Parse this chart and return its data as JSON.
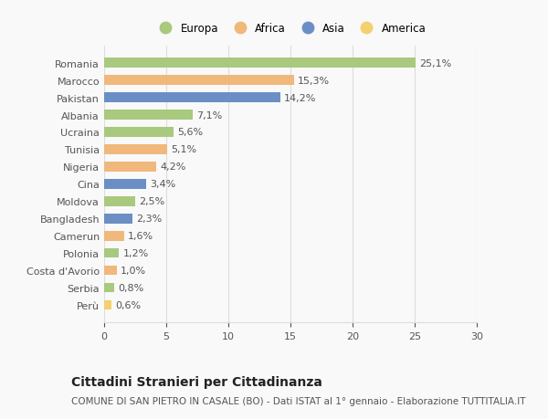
{
  "countries": [
    "Romania",
    "Marocco",
    "Pakistan",
    "Albania",
    "Ucraina",
    "Tunisia",
    "Nigeria",
    "Cina",
    "Moldova",
    "Bangladesh",
    "Camerun",
    "Polonia",
    "Costa d'Avorio",
    "Serbia",
    "Perù"
  ],
  "values": [
    25.1,
    15.3,
    14.2,
    7.1,
    5.6,
    5.1,
    4.2,
    3.4,
    2.5,
    2.3,
    1.6,
    1.2,
    1.0,
    0.8,
    0.6
  ],
  "labels": [
    "25,1%",
    "15,3%",
    "14,2%",
    "7,1%",
    "5,6%",
    "5,1%",
    "4,2%",
    "3,4%",
    "2,5%",
    "2,3%",
    "1,6%",
    "1,2%",
    "1,0%",
    "0,8%",
    "0,6%"
  ],
  "continents": [
    "Europa",
    "Africa",
    "Asia",
    "Europa",
    "Europa",
    "Africa",
    "Africa",
    "Asia",
    "Europa",
    "Asia",
    "Africa",
    "Europa",
    "Africa",
    "Europa",
    "America"
  ],
  "continent_colors": {
    "Europa": "#a8c97e",
    "Africa": "#f0b87a",
    "Asia": "#6b8fc4",
    "America": "#f5d070"
  },
  "legend_order": [
    "Europa",
    "Africa",
    "Asia",
    "America"
  ],
  "title": "Cittadini Stranieri per Cittadinanza",
  "subtitle": "COMUNE DI SAN PIETRO IN CASALE (BO) - Dati ISTAT al 1° gennaio - Elaborazione TUTTITALIA.IT",
  "xlim": [
    0,
    30
  ],
  "xticks": [
    0,
    5,
    10,
    15,
    20,
    25,
    30
  ],
  "background_color": "#f9f9f9",
  "grid_color": "#dddddd",
  "bar_height": 0.55,
  "title_fontsize": 10,
  "subtitle_fontsize": 7.5,
  "label_fontsize": 8,
  "tick_fontsize": 8,
  "legend_fontsize": 8.5
}
